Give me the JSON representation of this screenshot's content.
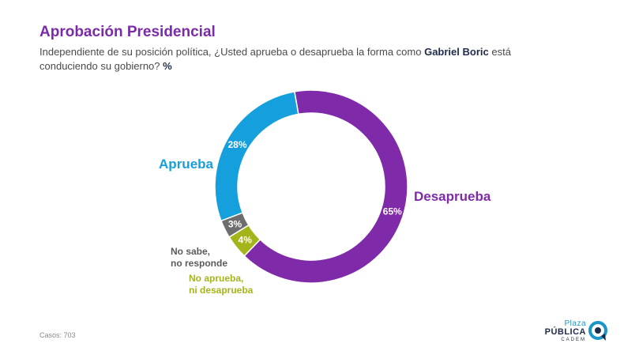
{
  "header": {
    "title": "Aprobación Presidencial",
    "subtitle_pre": "Independiente de su posición política, ¿Usted aprueba o desaprueba la forma como ",
    "subtitle_bold": "Gabriel Boric",
    "subtitle_post": " está conduciendo su gobierno?",
    "subtitle_unit": "%"
  },
  "chart_data": {
    "type": "pie",
    "style": "donut",
    "slices": [
      {
        "label": "Desaprueba",
        "value": 65,
        "value_label": "65%",
        "color": "#7f2aa8"
      },
      {
        "label_lines": [
          "No aprueba,",
          "ni desaprueba"
        ],
        "value": 4,
        "value_label": "4%",
        "color": "#a4b51c"
      },
      {
        "label_lines": [
          "No sabe,",
          "no responde"
        ],
        "value": 3,
        "value_label": "3%",
        "color": "#6d6d6d"
      },
      {
        "label": "Aprueba",
        "value": 28,
        "value_label": "28%",
        "color": "#159fdc"
      }
    ]
  },
  "footer": {
    "cases_label": "Casos:",
    "cases_value": "703"
  },
  "logo": {
    "line1": "Plaza",
    "line2": "PÚBLICA",
    "line3": "CADEM",
    "icon": "speech-bubble-icon"
  }
}
